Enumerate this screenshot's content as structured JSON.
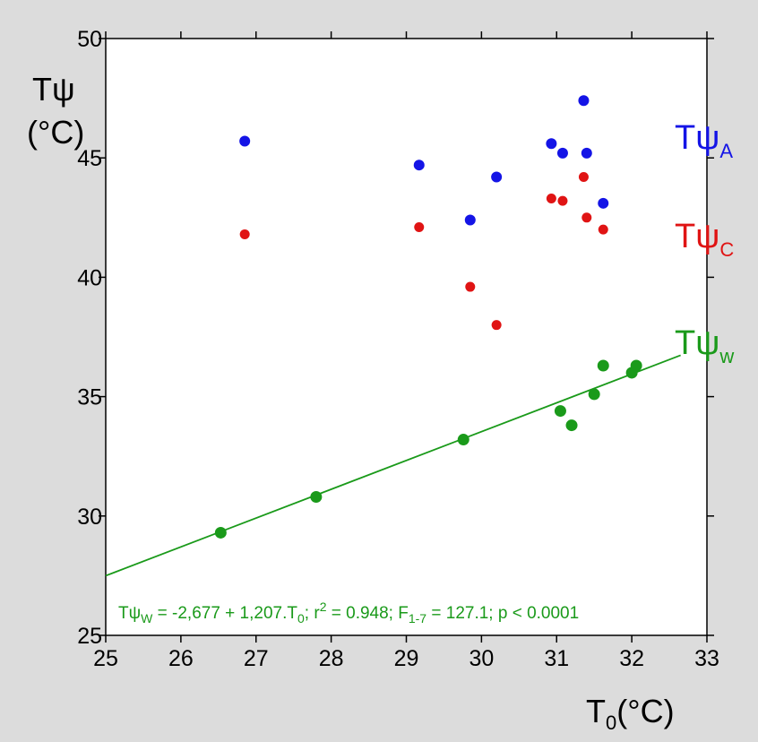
{
  "chart_data": {
    "type": "scatter",
    "xlabel": {
      "main": "T",
      "sub": "0",
      "unit": "(°C)"
    },
    "ylabel": {
      "line1": "Tψ",
      "line2": "(°C)"
    },
    "xlim": [
      25,
      33
    ],
    "ylim": [
      25,
      50
    ],
    "xticks": [
      25,
      26,
      27,
      28,
      29,
      30,
      31,
      32,
      33
    ],
    "yticks": [
      25,
      30,
      35,
      40,
      45,
      50
    ],
    "colors": {
      "A": "#1414e6",
      "C": "#e01414",
      "W": "#1a9a1a"
    },
    "series": [
      {
        "name": {
          "main": "Tψ",
          "sub": "A"
        },
        "color": "#1414e6",
        "points": [
          {
            "x": 26.85,
            "y": 45.7
          },
          {
            "x": 29.17,
            "y": 44.7
          },
          {
            "x": 29.85,
            "y": 42.4
          },
          {
            "x": 30.2,
            "y": 44.2
          },
          {
            "x": 30.93,
            "y": 45.6
          },
          {
            "x": 31.08,
            "y": 45.2
          },
          {
            "x": 31.36,
            "y": 47.4
          },
          {
            "x": 31.4,
            "y": 45.2
          },
          {
            "x": 31.62,
            "y": 43.1
          }
        ]
      },
      {
        "name": {
          "main": "Tψ",
          "sub": "C"
        },
        "color": "#e01414",
        "points": [
          {
            "x": 26.85,
            "y": 41.8
          },
          {
            "x": 29.17,
            "y": 42.1
          },
          {
            "x": 29.85,
            "y": 39.6
          },
          {
            "x": 30.2,
            "y": 38.0
          },
          {
            "x": 30.93,
            "y": 43.3
          },
          {
            "x": 31.08,
            "y": 43.2
          },
          {
            "x": 31.36,
            "y": 44.2
          },
          {
            "x": 31.4,
            "y": 42.5
          },
          {
            "x": 31.62,
            "y": 42.0
          }
        ]
      },
      {
        "name": {
          "main": "Tψ",
          "sub": "w"
        },
        "color": "#1a9a1a",
        "points": [
          {
            "x": 26.53,
            "y": 29.3
          },
          {
            "x": 27.8,
            "y": 30.8
          },
          {
            "x": 29.76,
            "y": 33.2
          },
          {
            "x": 31.05,
            "y": 34.4
          },
          {
            "x": 31.2,
            "y": 33.8
          },
          {
            "x": 31.5,
            "y": 35.1
          },
          {
            "x": 31.62,
            "y": 36.3
          },
          {
            "x": 32.0,
            "y": 36.0
          },
          {
            "x": 32.06,
            "y": 36.3
          }
        ]
      }
    ],
    "regression": {
      "intercept": -2.677,
      "slope": 1.207,
      "x_range": [
        25,
        32.65
      ],
      "color": "#1a9a1a"
    },
    "equation": {
      "part1": "Tψ",
      "part1_sub": "W",
      "part2": " = -2,677 + 1,207.T",
      "part2_sub": "0",
      "part3": "; r",
      "part3_sup": "2",
      "part4": " = 0.948; F",
      "part4_sub": "1-7",
      "part5": " = 127.1; p < 0.0001"
    }
  }
}
